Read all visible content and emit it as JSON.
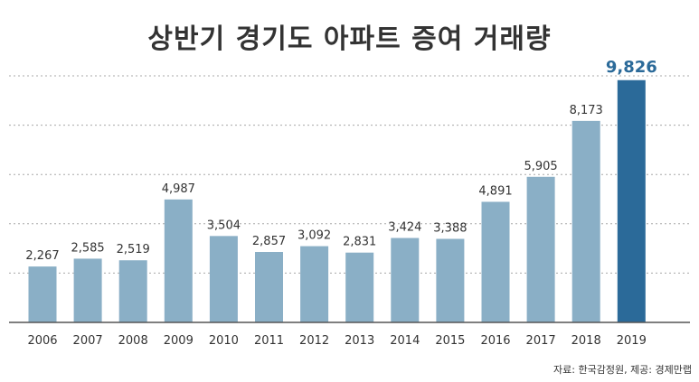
{
  "chart_data": {
    "type": "bar",
    "title": "상반기 경기도 아파트 증여 거래량",
    "categories": [
      "2006",
      "2007",
      "2008",
      "2009",
      "2010",
      "2011",
      "2012",
      "2013",
      "2014",
      "2015",
      "2016",
      "2017",
      "2018",
      "2019"
    ],
    "values": [
      2267,
      2585,
      2519,
      4987,
      3504,
      2857,
      3092,
      2831,
      3424,
      3388,
      4891,
      5905,
      8173,
      9826
    ],
    "value_labels": [
      "2,267",
      "2,585",
      "2,519",
      "4,987",
      "3,504",
      "2,857",
      "3,092",
      "2,831",
      "3,424",
      "3,388",
      "4,891",
      "5,905",
      "8,173",
      "9,826"
    ],
    "ylim": [
      0,
      10000
    ],
    "grid": true,
    "colors": {
      "bar": "#8aafc6",
      "highlight_bar": "#2b6a99",
      "highlight_label": "#2b6a99",
      "label": "#333333",
      "grid": "#a8a8a8"
    },
    "highlight_index": 13
  },
  "source": "자료: 한국감정원, 제공: 경제만랩"
}
